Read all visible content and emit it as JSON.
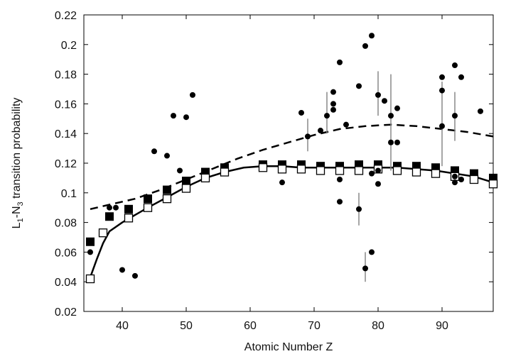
{
  "chart_data": {
    "type": "scatter",
    "title": "",
    "xlabel": "Atomic Number Z",
    "ylabel_main": "L",
    "ylabel_sub1": "1",
    "ylabel_mid": "-N",
    "ylabel_sub2": "3",
    "ylabel_tail": " transition probability",
    "xlim": [
      34,
      98
    ],
    "ylim": [
      0.02,
      0.22
    ],
    "x_ticks": [
      40,
      50,
      60,
      70,
      80,
      90
    ],
    "y_ticks": [
      0.02,
      0.04,
      0.06,
      0.08,
      0.1,
      0.12,
      0.14,
      0.16,
      0.18,
      0.2,
      0.22
    ],
    "x_tick_labels": [
      "40",
      "50",
      "60",
      "70",
      "80",
      "90"
    ],
    "y_tick_labels": [
      "0.02",
      "0.04",
      "0.06",
      "0.08",
      "0.1",
      "0.12",
      "0.14",
      "0.16",
      "0.18",
      "0.2",
      "0.22"
    ],
    "grid": false,
    "series": [
      {
        "style": "dashed-line",
        "x": [
          35,
          38,
          42,
          46,
          50,
          54,
          58,
          62,
          66,
          70,
          74,
          78,
          82,
          86,
          90,
          94,
          98
        ],
        "y": [
          0.089,
          0.092,
          0.096,
          0.102,
          0.109,
          0.116,
          0.123,
          0.129,
          0.134,
          0.139,
          0.143,
          0.145,
          0.146,
          0.145,
          0.143,
          0.141,
          0.138
        ]
      },
      {
        "style": "solid-line",
        "x": [
          35,
          36,
          37,
          38,
          40,
          42,
          44,
          47,
          50,
          53,
          56,
          59,
          62,
          65,
          68,
          71,
          74,
          77,
          80,
          83,
          86,
          89,
          92,
          95,
          98
        ],
        "y": [
          0.043,
          0.055,
          0.066,
          0.074,
          0.08,
          0.085,
          0.09,
          0.097,
          0.104,
          0.11,
          0.114,
          0.117,
          0.118,
          0.118,
          0.117,
          0.117,
          0.117,
          0.117,
          0.117,
          0.117,
          0.116,
          0.115,
          0.113,
          0.111,
          0.107
        ]
      },
      {
        "style": "filled-square",
        "x": [
          35,
          38,
          41,
          44,
          47,
          50,
          53,
          56,
          62,
          65,
          68,
          71,
          74,
          77,
          80,
          83,
          86,
          89,
          92,
          95,
          98
        ],
        "y": [
          0.067,
          0.084,
          0.089,
          0.096,
          0.102,
          0.108,
          0.114,
          0.117,
          0.119,
          0.119,
          0.119,
          0.118,
          0.118,
          0.119,
          0.119,
          0.118,
          0.118,
          0.117,
          0.115,
          0.113,
          0.11
        ]
      },
      {
        "style": "open-square",
        "x": [
          35,
          37,
          41,
          44,
          47,
          50,
          53,
          56,
          62,
          65,
          68,
          71,
          74,
          77,
          80,
          83,
          86,
          89,
          92,
          95,
          98
        ],
        "y": [
          0.042,
          0.073,
          0.083,
          0.09,
          0.096,
          0.103,
          0.11,
          0.114,
          0.117,
          0.116,
          0.116,
          0.115,
          0.115,
          0.115,
          0.116,
          0.115,
          0.114,
          0.113,
          0.111,
          0.109,
          0.106
        ]
      },
      {
        "style": "dot",
        "x": [
          35,
          38,
          39,
          40,
          42,
          45,
          47,
          48,
          49,
          50,
          51,
          65,
          68,
          69,
          71,
          72,
          73,
          73,
          73,
          74,
          74,
          74,
          75,
          77,
          77,
          78,
          78,
          79,
          79,
          79,
          80,
          80,
          80,
          81,
          82,
          82,
          83,
          83,
          90,
          90,
          90,
          92,
          92,
          92,
          92,
          93,
          93,
          96
        ],
        "y": [
          0.06,
          0.09,
          0.09,
          0.048,
          0.044,
          0.128,
          0.125,
          0.152,
          0.115,
          0.151,
          0.166,
          0.107,
          0.154,
          0.138,
          0.142,
          0.152,
          0.156,
          0.16,
          0.168,
          0.188,
          0.109,
          0.094,
          0.146,
          0.089,
          0.172,
          0.199,
          0.049,
          0.206,
          0.113,
          0.06,
          0.166,
          0.106,
          0.115,
          0.162,
          0.152,
          0.134,
          0.157,
          0.134,
          0.178,
          0.169,
          0.145,
          0.186,
          0.152,
          0.111,
          0.107,
          0.178,
          0.109,
          0.155
        ]
      },
      {
        "style": "error-bar",
        "x": [
          69,
          72,
          77,
          78,
          80,
          82,
          90,
          92
        ],
        "y_low": [
          0.128,
          0.14,
          0.078,
          0.04,
          0.152,
          0.115,
          0.118,
          0.135
        ],
        "y_high": [
          0.15,
          0.168,
          0.1,
          0.06,
          0.182,
          0.18,
          0.175,
          0.168
        ]
      }
    ]
  }
}
